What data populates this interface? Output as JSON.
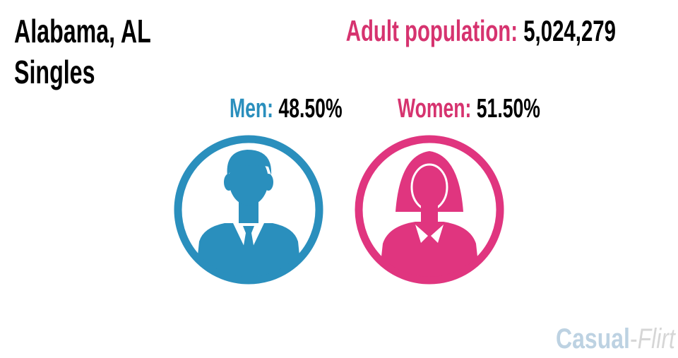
{
  "header": {
    "title_lines": [
      "Alabama, AL",
      "Singles"
    ],
    "population_label": "Adult population:",
    "population_value": "5,024,279"
  },
  "men": {
    "label": "Men:",
    "value": "48.50%"
  },
  "women": {
    "label": "Women:",
    "value": "51.50%"
  },
  "logo": {
    "parts": [
      "Casual",
      "-",
      "Flirt"
    ]
  }
}
